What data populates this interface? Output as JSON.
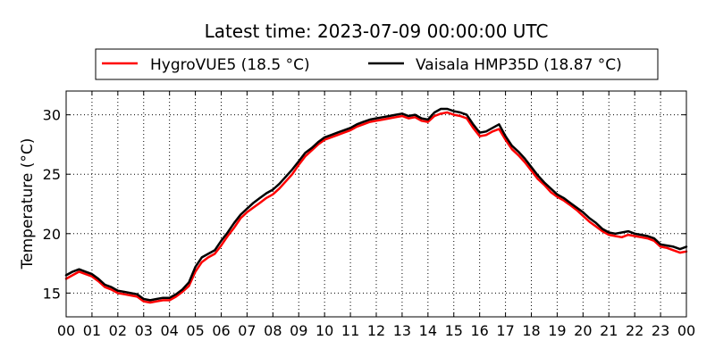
{
  "chart_data": {
    "type": "line",
    "title": "Latest time: 2023-07-09 00:00:00 UTC",
    "xlabel": "",
    "ylabel": "Temperature (°C)",
    "xlim": [
      0,
      24
    ],
    "ylim": [
      13,
      32
    ],
    "x_ticks": [
      0,
      1,
      2,
      3,
      4,
      5,
      6,
      7,
      8,
      9,
      10,
      11,
      12,
      13,
      14,
      15,
      16,
      17,
      18,
      19,
      20,
      21,
      22,
      23,
      24
    ],
    "x_tick_labels": [
      "00",
      "01",
      "02",
      "03",
      "04",
      "05",
      "06",
      "07",
      "08",
      "09",
      "10",
      "11",
      "12",
      "13",
      "14",
      "15",
      "16",
      "17",
      "18",
      "19",
      "20",
      "21",
      "22",
      "23",
      "00"
    ],
    "y_ticks": [
      15,
      20,
      25,
      30
    ],
    "y_tick_labels": [
      "15",
      "20",
      "25",
      "30"
    ],
    "grid": true,
    "legend_position": "top",
    "series": [
      {
        "name": "HygroVUE5 (18.5 °C)",
        "color": "#ff0000",
        "x": [
          0,
          0.25,
          0.5,
          0.75,
          1,
          1.25,
          1.5,
          1.75,
          2,
          2.25,
          2.5,
          2.75,
          3,
          3.25,
          3.5,
          3.75,
          4,
          4.25,
          4.5,
          4.75,
          5,
          5.25,
          5.5,
          5.75,
          6,
          6.25,
          6.5,
          6.75,
          7,
          7.25,
          7.5,
          7.75,
          8,
          8.25,
          8.5,
          8.75,
          9,
          9.25,
          9.5,
          9.75,
          10,
          10.25,
          10.5,
          10.75,
          11,
          11.25,
          11.5,
          11.75,
          12,
          12.25,
          12.5,
          12.75,
          13,
          13.25,
          13.5,
          13.75,
          14,
          14.25,
          14.5,
          14.75,
          15,
          15.25,
          15.5,
          15.75,
          16,
          16.25,
          16.5,
          16.75,
          17,
          17.25,
          17.5,
          17.75,
          18,
          18.25,
          18.5,
          18.75,
          19,
          19.25,
          19.5,
          19.75,
          20,
          20.25,
          20.5,
          20.75,
          21,
          21.25,
          21.5,
          21.75,
          22,
          22.25,
          22.5,
          22.75,
          23,
          23.25,
          23.5,
          23.75,
          24
        ],
        "y": [
          16.2,
          16.5,
          16.8,
          16.6,
          16.4,
          16.0,
          15.5,
          15.3,
          15.0,
          14.9,
          14.8,
          14.7,
          14.3,
          14.2,
          14.3,
          14.4,
          14.4,
          14.7,
          15.1,
          15.6,
          16.8,
          17.6,
          18.0,
          18.3,
          19.0,
          19.8,
          20.5,
          21.3,
          21.8,
          22.2,
          22.6,
          23.0,
          23.3,
          23.8,
          24.4,
          25.0,
          25.8,
          26.5,
          27.0,
          27.5,
          27.9,
          28.1,
          28.3,
          28.5,
          28.7,
          29.0,
          29.2,
          29.4,
          29.5,
          29.6,
          29.7,
          29.8,
          29.9,
          29.7,
          29.8,
          29.5,
          29.4,
          29.9,
          30.1,
          30.2,
          30.0,
          29.9,
          29.7,
          28.9,
          28.2,
          28.3,
          28.6,
          28.8,
          27.9,
          27.1,
          26.6,
          26.0,
          25.3,
          24.6,
          24.1,
          23.5,
          23.1,
          22.8,
          22.4,
          22.0,
          21.5,
          21.0,
          20.6,
          20.2,
          19.9,
          19.8,
          19.7,
          19.9,
          19.8,
          19.7,
          19.6,
          19.4,
          18.9,
          18.8,
          18.6,
          18.4,
          18.5
        ]
      },
      {
        "name": "Vaisala HMP35D (18.87 °C)",
        "color": "#000000",
        "x": [
          0,
          0.25,
          0.5,
          0.75,
          1,
          1.25,
          1.5,
          1.75,
          2,
          2.25,
          2.5,
          2.75,
          3,
          3.25,
          3.5,
          3.75,
          4,
          4.25,
          4.5,
          4.75,
          5,
          5.25,
          5.5,
          5.75,
          6,
          6.25,
          6.5,
          6.75,
          7,
          7.25,
          7.5,
          7.75,
          8,
          8.25,
          8.5,
          8.75,
          9,
          9.25,
          9.5,
          9.75,
          10,
          10.25,
          10.5,
          10.75,
          11,
          11.25,
          11.5,
          11.75,
          12,
          12.25,
          12.5,
          12.75,
          13,
          13.25,
          13.5,
          13.75,
          14,
          14.25,
          14.5,
          14.75,
          15,
          15.25,
          15.5,
          15.75,
          16,
          16.25,
          16.5,
          16.75,
          17,
          17.25,
          17.5,
          17.75,
          18,
          18.25,
          18.5,
          18.75,
          19,
          19.25,
          19.5,
          19.75,
          20,
          20.25,
          20.5,
          20.75,
          21,
          21.25,
          21.5,
          21.75,
          22,
          22.25,
          22.5,
          22.75,
          23,
          23.25,
          23.5,
          23.75,
          24
        ],
        "y": [
          16.5,
          16.8,
          17.0,
          16.8,
          16.6,
          16.2,
          15.7,
          15.5,
          15.2,
          15.1,
          15.0,
          14.9,
          14.5,
          14.4,
          14.5,
          14.6,
          14.6,
          14.9,
          15.3,
          15.9,
          17.2,
          18.0,
          18.3,
          18.6,
          19.4,
          20.1,
          20.9,
          21.6,
          22.1,
          22.6,
          23.0,
          23.4,
          23.7,
          24.2,
          24.8,
          25.4,
          26.1,
          26.8,
          27.2,
          27.7,
          28.1,
          28.3,
          28.5,
          28.7,
          28.9,
          29.2,
          29.4,
          29.6,
          29.7,
          29.8,
          29.9,
          30.0,
          30.1,
          29.9,
          30.0,
          29.7,
          29.6,
          30.2,
          30.5,
          30.5,
          30.3,
          30.2,
          30.0,
          29.2,
          28.5,
          28.6,
          28.9,
          29.2,
          28.2,
          27.4,
          26.9,
          26.3,
          25.6,
          24.9,
          24.3,
          23.8,
          23.3,
          23.0,
          22.6,
          22.2,
          21.8,
          21.3,
          20.9,
          20.4,
          20.1,
          20.0,
          20.1,
          20.2,
          20.0,
          19.9,
          19.8,
          19.6,
          19.1,
          19.0,
          18.9,
          18.7,
          18.9
        ]
      }
    ]
  }
}
